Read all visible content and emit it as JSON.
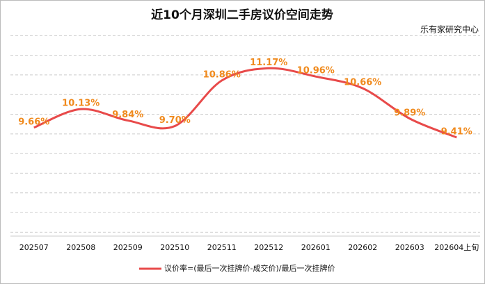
{
  "chart_data": {
    "type": "line",
    "title": "近10个月深圳二手房议价空间走势",
    "subtitle": "乐有家研究中心",
    "categories": [
      "202507",
      "202508",
      "202509",
      "202510",
      "202511",
      "202512",
      "202601",
      "202602",
      "202603",
      "202604上旬"
    ],
    "series": [
      {
        "name": "议价率=(最后一次挂牌价-成交价)/最后一次挂牌价",
        "color": "#e84a4a",
        "values": [
          9.66,
          10.13,
          9.84,
          9.7,
          10.86,
          11.17,
          10.96,
          10.66,
          9.89,
          9.41
        ],
        "value_labels": [
          "9.66%",
          "10.13%",
          "9.84%",
          "9.70%",
          "10.86%",
          "11.17%",
          "10.96%",
          "10.66%",
          "9.89%",
          "9.41%"
        ]
      }
    ],
    "ylim": [
      6.9,
      12.2
    ],
    "yticks": [
      7,
      7.5,
      8,
      8.5,
      9,
      9.5,
      10,
      10.5,
      11,
      11.5,
      12
    ],
    "grid": true,
    "legend": "bottom"
  }
}
